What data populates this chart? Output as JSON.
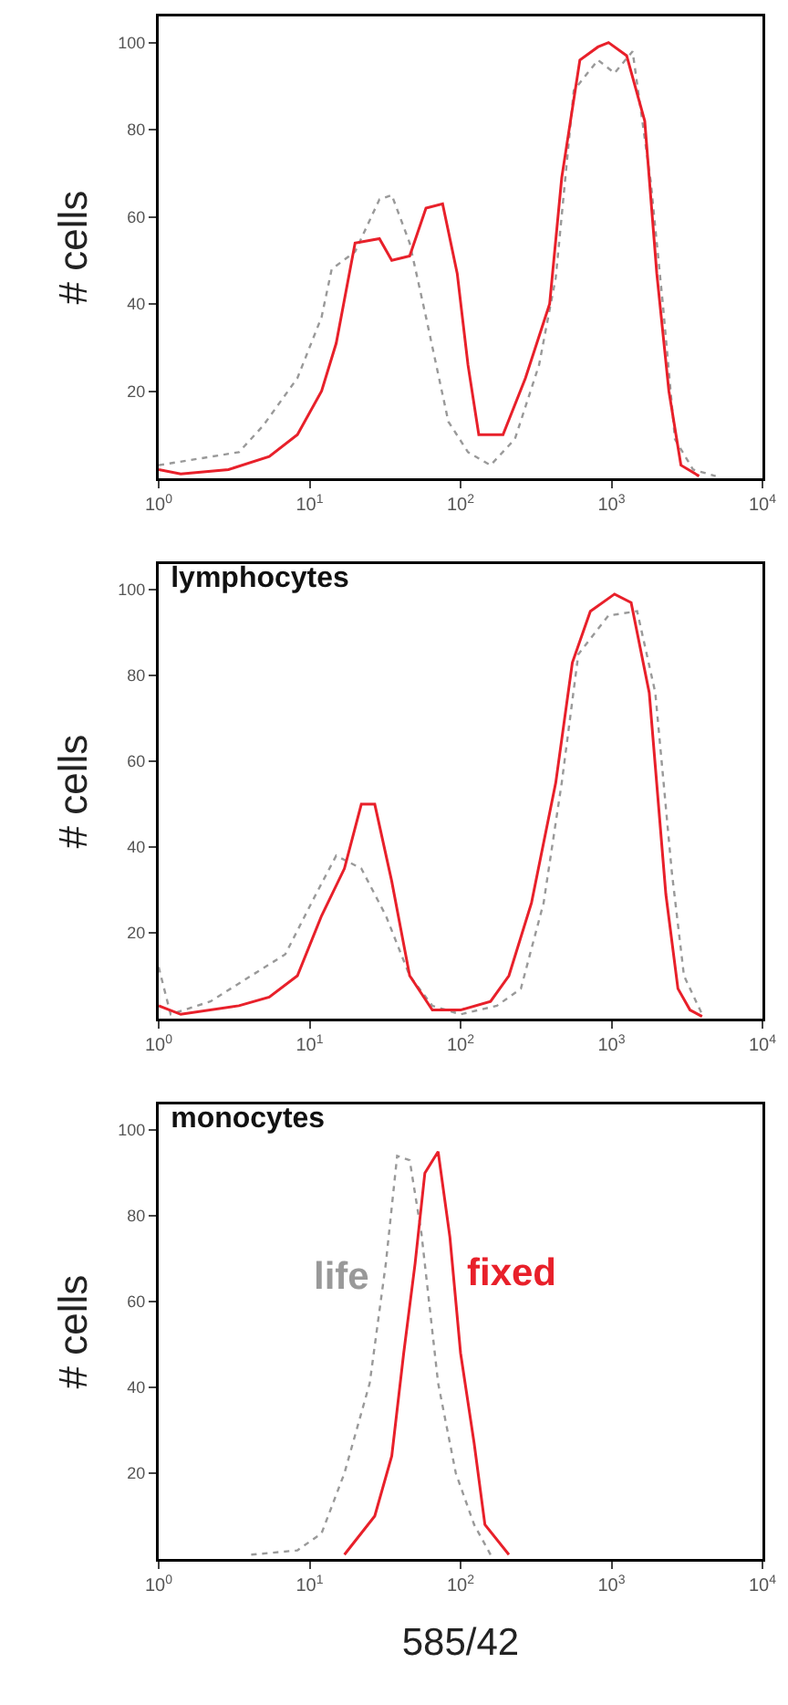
{
  "chart_data": [
    {
      "type": "line",
      "ylabel": "# cells",
      "xlim": [
        1,
        10000
      ],
      "ylim": [
        0,
        106
      ],
      "log": "x",
      "legend": false,
      "grid": false,
      "xticks": [
        {
          "value": 1,
          "label": "10$^{0}$"
        },
        {
          "value": 10,
          "label": "10$^{1}$"
        },
        {
          "value": 100,
          "label": "10$^{2}$"
        },
        {
          "value": 1000,
          "label": "10$^{3}$"
        },
        {
          "value": 10000,
          "label": "10$^{4}$"
        }
      ],
      "yticks": [
        20,
        40,
        60,
        80,
        100
      ],
      "series": [
        {
          "color": "#999999",
          "line_style": "dotted",
          "x": [
            1,
            3.4,
            4.9,
            8.3,
            12,
            14,
            20,
            29,
            35,
            46,
            59,
            83,
            112,
            158,
            229,
            331,
            427,
            562,
            813,
            1047,
            1380,
            1820,
            2188,
            2630,
            3467,
            4898
          ],
          "values": [
            3,
            6,
            12,
            23,
            37,
            48,
            52,
            64,
            65,
            54,
            37,
            13,
            6,
            3,
            9,
            26,
            46,
            89,
            96,
            93,
            98,
            68,
            40,
            9,
            2,
            0.5
          ]
        },
        {
          "color": "#e8202a",
          "line_style": "solid",
          "x": [
            1,
            1.4,
            2.9,
            5.4,
            8.3,
            12,
            15,
            20,
            29,
            35,
            46,
            59,
            76,
            95,
            112,
            132,
            191,
            269,
            389,
            468,
            617,
            813,
            955,
            1259,
            1660,
            1995,
            2399,
            2884,
            3802
          ],
          "values": [
            2,
            1,
            2,
            5,
            10,
            20,
            31,
            54,
            55,
            50,
            51,
            62,
            63,
            47,
            26,
            10,
            10,
            23,
            40,
            69,
            96,
            99,
            100,
            97,
            82,
            47,
            20,
            3,
            0.5
          ]
        }
      ]
    },
    {
      "type": "line",
      "title": "lymphocytes",
      "ylabel": "# cells",
      "xlim": [
        1,
        10000
      ],
      "ylim": [
        0,
        106
      ],
      "log": "x",
      "legend": false,
      "grid": false,
      "xticks": [
        {
          "value": 1,
          "label": "10$^{0}$"
        },
        {
          "value": 10,
          "label": "10$^{1}$"
        },
        {
          "value": 100,
          "label": "10$^{2}$"
        },
        {
          "value": 1000,
          "label": "10$^{3}$"
        },
        {
          "value": 10000,
          "label": "10$^{4}$"
        }
      ],
      "yticks": [
        20,
        40,
        60,
        80,
        100
      ],
      "series": [
        {
          "color": "#999999",
          "line_style": "dotted",
          "x": [
            1,
            1.2,
            2.2,
            4.1,
            6.9,
            11,
            15,
            22,
            32,
            46,
            65,
            100,
            174,
            251,
            355,
            468,
            603,
            955,
            1479,
            1950,
            2512,
            3020,
            3981
          ],
          "values": [
            12,
            1,
            4,
            10,
            15,
            29,
            38,
            35,
            24,
            10,
            3,
            1,
            3,
            7,
            27,
            55,
            85,
            94,
            95,
            76,
            34,
            10,
            1
          ]
        },
        {
          "color": "#e8202a",
          "line_style": "solid",
          "x": [
            1,
            1.4,
            3.4,
            5.4,
            8.3,
            12,
            17,
            22,
            27,
            35,
            46,
            65,
            100,
            158,
            209,
            295,
            427,
            550,
            724,
            1047,
            1349,
            1778,
            2291,
            2754,
            3311,
            3981
          ],
          "values": [
            3,
            1,
            3,
            5,
            10,
            24,
            35,
            50,
            50,
            32,
            10,
            2,
            2,
            4,
            10,
            27,
            55,
            83,
            95,
            99,
            97,
            76,
            29,
            7,
            2,
            0.5
          ]
        }
      ]
    },
    {
      "type": "line",
      "title": "monocytes",
      "ylabel": "# cells",
      "xlabel": "585/42",
      "xlim": [
        1,
        10000
      ],
      "ylim": [
        0,
        106
      ],
      "log": "x",
      "legend": false,
      "grid": false,
      "xticks": [
        {
          "value": 1,
          "label": "10$^{0}$"
        },
        {
          "value": 10,
          "label": "10$^{1}$"
        },
        {
          "value": 100,
          "label": "10$^{2}$"
        },
        {
          "value": 1000,
          "label": "10$^{3}$"
        },
        {
          "value": 10000,
          "label": "10$^{4}$"
        }
      ],
      "yticks": [
        20,
        40,
        60,
        80,
        100
      ],
      "series": [
        {
          "name": "life",
          "color": "#999999",
          "line_style": "dotted",
          "x": [
            4.1,
            8.3,
            12,
            17,
            25,
            32,
            38,
            46,
            55,
            71,
            93,
            123,
            158
          ],
          "values": [
            1,
            2,
            6,
            20,
            41,
            69,
            94,
            93,
            76,
            41,
            20,
            8,
            1
          ]
        },
        {
          "name": "fixed",
          "color": "#e8202a",
          "line_style": "solid",
          "x": [
            17,
            27,
            35,
            42,
            50,
            58,
            71,
            85,
            100,
            123,
            145,
            209
          ],
          "values": [
            1,
            10,
            24,
            48,
            69,
            90,
            95,
            75,
            48,
            27,
            8,
            1
          ]
        }
      ]
    }
  ]
}
